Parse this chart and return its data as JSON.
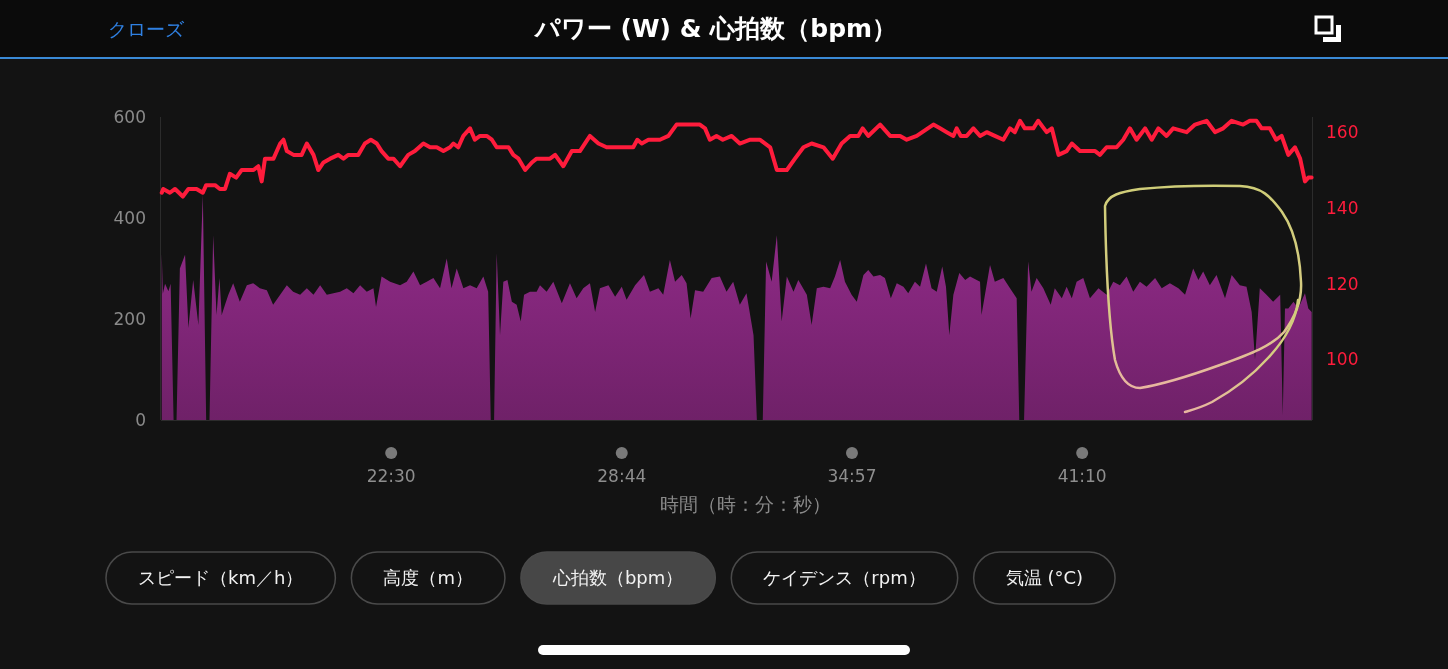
{
  "chart_data": {
    "type": "line",
    "title": "パワー (W) & 心拍数（bpm）",
    "xlabel": "時間（時：分：秒）",
    "annotations": [
      "クローズ",
      "スピード（km／h）",
      "高度（m）",
      "心拍数（bpm）",
      "ケイデンス（rpm）",
      "気温 (°C)"
    ],
    "xlim": [
      16.28,
      47.38
    ],
    "xticks": [
      {
        "value": 22.5,
        "label": "22:30"
      },
      {
        "value": 28.73,
        "label": "28:44"
      },
      {
        "value": 34.95,
        "label": "34:57"
      },
      {
        "value": 41.17,
        "label": "41:10"
      }
    ],
    "ylim": [
      0,
      600
    ],
    "yticks": [
      0,
      200,
      400,
      600
    ],
    "y2lim": [
      84,
      164
    ],
    "y2ticks": [
      100,
      120,
      140,
      160
    ],
    "series": [
      {
        "type": "area",
        "color": "#8e2a86",
        "x": [
          16.3,
          16.33,
          16.39,
          16.48,
          16.54,
          16.62,
          16.7,
          16.79,
          16.93,
          17.02,
          17.15,
          17.29,
          17.33,
          17.41,
          17.5,
          17.59,
          17.69,
          17.78,
          17.86,
          17.92,
          18.01,
          18.1,
          18.23,
          18.41,
          18.6,
          18.77,
          18.95,
          19.14,
          19.31,
          19.5,
          19.68,
          19.85,
          20.04,
          20.22,
          20.4,
          20.58,
          20.76,
          20.94,
          21.12,
          21.3,
          21.48,
          21.66,
          21.84,
          22.02,
          22.09,
          22.24,
          22.47,
          22.74,
          22.92,
          23.1,
          23.28,
          23.46,
          23.64,
          23.82,
          24.0,
          24.13,
          24.27,
          24.45,
          24.63,
          24.81,
          24.99,
          25.12,
          25.19,
          25.28,
          25.35,
          25.44,
          25.53,
          25.64,
          25.76,
          25.89,
          26.0,
          26.09,
          26.25,
          26.43,
          26.52,
          26.7,
          26.88,
          27.11,
          27.33,
          27.51,
          27.69,
          27.87,
          28.01,
          28.14,
          28.37,
          28.55,
          28.73,
          28.86,
          29.09,
          29.33,
          29.49,
          29.72,
          29.85,
          30.03,
          30.17,
          30.35,
          30.48,
          30.59,
          30.71,
          30.93,
          31.16,
          31.38,
          31.56,
          31.74,
          31.92,
          32.1,
          32.29,
          32.38,
          32.54,
          32.63,
          32.78,
          32.92,
          33.05,
          33.19,
          33.37,
          33.5,
          33.73,
          33.86,
          34.0,
          34.18,
          34.36,
          34.49,
          34.63,
          34.76,
          34.94,
          35.08,
          35.26,
          35.39,
          35.53,
          35.71,
          35.84,
          36.0,
          36.16,
          36.34,
          36.47,
          36.65,
          36.79,
          36.95,
          37.1,
          37.24,
          37.39,
          37.49,
          37.58,
          37.69,
          37.85,
          38.01,
          38.14,
          38.32,
          38.41,
          38.45,
          38.68,
          38.81,
          39.04,
          39.22,
          39.4,
          39.47,
          39.6,
          39.71,
          39.8,
          39.94,
          40.12,
          40.32,
          40.43,
          40.62,
          40.75,
          40.89,
          41.02,
          41.2,
          41.38,
          41.61,
          41.83,
          42.01,
          42.19,
          42.37,
          42.55,
          42.73,
          42.91,
          43.14,
          43.32,
          43.54,
          43.77,
          43.95,
          44.17,
          44.31,
          44.44,
          44.62,
          44.8,
          45.03,
          45.21,
          45.43,
          45.61,
          45.75,
          45.84,
          45.97,
          46.15,
          46.33,
          46.52,
          46.59,
          46.65,
          46.74,
          46.88,
          47.01,
          47.19,
          47.28,
          47.37
        ],
        "values": [
          330,
          250,
          270,
          255,
          270,
          0,
          0,
          300,
          327,
          182,
          277,
          188,
          274,
          446,
          0,
          0,
          366,
          208,
          281,
          208,
          228,
          248,
          271,
          234,
          267,
          271,
          261,
          257,
          228,
          248,
          267,
          254,
          248,
          261,
          248,
          267,
          248,
          251,
          254,
          261,
          251,
          267,
          254,
          261,
          224,
          284,
          274,
          267,
          274,
          294,
          267,
          274,
          281,
          261,
          320,
          261,
          300,
          261,
          267,
          261,
          284,
          254,
          0,
          0,
          330,
          168,
          274,
          277,
          234,
          228,
          195,
          248,
          254,
          254,
          267,
          254,
          274,
          231,
          271,
          241,
          261,
          271,
          214,
          261,
          267,
          244,
          264,
          238,
          267,
          287,
          254,
          261,
          248,
          317,
          274,
          287,
          271,
          201,
          257,
          254,
          281,
          284,
          254,
          274,
          228,
          251,
          168,
          0,
          0,
          314,
          274,
          366,
          195,
          284,
          254,
          277,
          248,
          188,
          261,
          264,
          261,
          284,
          317,
          274,
          248,
          234,
          287,
          297,
          284,
          287,
          281,
          241,
          271,
          264,
          251,
          274,
          264,
          310,
          261,
          254,
          304,
          264,
          168,
          248,
          291,
          277,
          284,
          277,
          274,
          208,
          307,
          274,
          281,
          261,
          241,
          0,
          0,
          314,
          254,
          281,
          261,
          228,
          261,
          241,
          264,
          241,
          274,
          281,
          241,
          261,
          248,
          274,
          267,
          284,
          254,
          274,
          264,
          281,
          261,
          271,
          261,
          248,
          300,
          277,
          294,
          267,
          287,
          241,
          287,
          267,
          264,
          214,
          120,
          261,
          248,
          234,
          248,
          10,
          221,
          221,
          234,
          221,
          251,
          221,
          214
        ]
      },
      {
        "axis": "y2",
        "color": "#ff1c3c",
        "x": [
          16.3,
          16.34,
          16.52,
          16.66,
          16.87,
          17.02,
          17.24,
          17.41,
          17.5,
          17.74,
          17.87,
          18.01,
          18.14,
          18.31,
          18.46,
          18.78,
          18.91,
          19.0,
          19.09,
          19.32,
          19.5,
          19.59,
          19.68,
          19.86,
          20.08,
          20.22,
          20.4,
          20.53,
          20.67,
          20.85,
          21.07,
          21.21,
          21.34,
          21.61,
          21.79,
          21.95,
          22.11,
          22.24,
          22.42,
          22.56,
          22.74,
          22.96,
          23.14,
          23.37,
          23.55,
          23.73,
          23.91,
          24.09,
          24.18,
          24.31,
          24.45,
          24.63,
          24.76,
          24.9,
          25.08,
          25.22,
          25.35,
          25.49,
          25.67,
          25.8,
          25.94,
          26.12,
          26.3,
          26.43,
          26.52,
          26.79,
          26.93,
          27.15,
          27.38,
          27.6,
          27.87,
          28.1,
          28.32,
          29.04,
          29.15,
          29.27,
          29.45,
          29.63,
          29.76,
          29.99,
          30.21,
          30.48,
          30.84,
          30.98,
          31.11,
          31.29,
          31.46,
          31.7,
          31.92,
          32.2,
          32.46,
          32.74,
          32.92,
          33.19,
          33.41,
          33.64,
          33.86,
          34.18,
          34.43,
          34.67,
          34.9,
          35.12,
          35.24,
          35.39,
          35.71,
          35.98,
          36.25,
          36.43,
          36.7,
          37.15,
          37.33,
          37.51,
          37.69,
          37.78,
          37.89,
          38.05,
          38.23,
          38.41,
          38.59,
          38.81,
          39.04,
          39.22,
          39.35,
          39.49,
          39.62,
          39.85,
          39.98,
          40.21,
          40.35,
          40.53,
          40.75,
          40.89,
          41.11,
          41.52,
          41.65,
          41.83,
          42.1,
          42.28,
          42.46,
          42.64,
          42.87,
          43.05,
          43.23,
          43.45,
          43.63,
          43.99,
          44.22,
          44.53,
          44.76,
          44.98,
          45.21,
          45.52,
          45.7,
          45.88,
          46.02,
          46.24,
          46.41,
          46.56,
          46.74,
          46.92,
          47.06,
          47.19,
          47.28,
          47.37
        ],
        "values": [
          144,
          145,
          144,
          145,
          143,
          145,
          145,
          144,
          146,
          146,
          145,
          145,
          149,
          148,
          150,
          150,
          151,
          147,
          153,
          153,
          157,
          158,
          155,
          154,
          154,
          157,
          154,
          150,
          152,
          153,
          154,
          153,
          154,
          154,
          157,
          158,
          157,
          155,
          153,
          153,
          151,
          154,
          155,
          157,
          156,
          156,
          155,
          156,
          157,
          156,
          159,
          161,
          158,
          159,
          159,
          158,
          156,
          156,
          156,
          154,
          153,
          150,
          152,
          153,
          153,
          153,
          154,
          151,
          155,
          155,
          159,
          157,
          156,
          156,
          158,
          157,
          158,
          158,
          158,
          159,
          162,
          162,
          162,
          161,
          158,
          159,
          158,
          159,
          157,
          158,
          158,
          156,
          150,
          150,
          153,
          156,
          157,
          156,
          153,
          157,
          159,
          159,
          161,
          159,
          162,
          159,
          159,
          158,
          159,
          162,
          161,
          160,
          159,
          161,
          159,
          159,
          161,
          159,
          160,
          159,
          158,
          161,
          160,
          163,
          161,
          161,
          163,
          160,
          161,
          154,
          155,
          157,
          155,
          155,
          154,
          156,
          156,
          158,
          161,
          158,
          161,
          158,
          161,
          159,
          161,
          160,
          162,
          163,
          160,
          161,
          163,
          162,
          163,
          163,
          161,
          161,
          158,
          159,
          154,
          156,
          153,
          147,
          148,
          148
        ]
      }
    ]
  }
}
